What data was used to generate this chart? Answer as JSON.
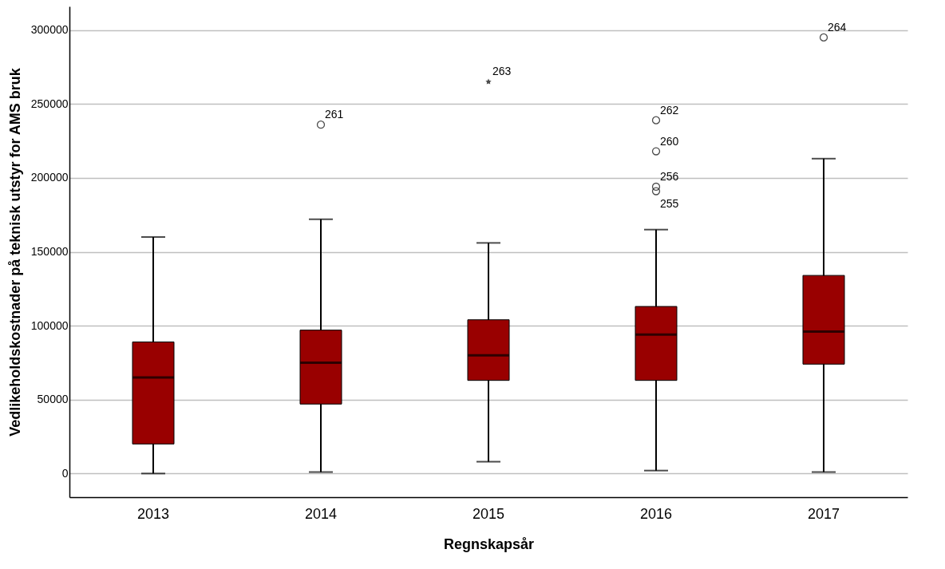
{
  "chart_data": {
    "type": "box",
    "xlabel": "Regnskapsår",
    "ylabel": "Vedlikeholdskostnader på teknisk utstyr for AMS bruk",
    "categories": [
      "2013",
      "2014",
      "2015",
      "2016",
      "2017"
    ],
    "ylim": [
      -16000,
      316000
    ],
    "yticks": [
      0,
      50000,
      100000,
      150000,
      200000,
      250000,
      300000
    ],
    "grid": "y",
    "series": [
      {
        "color": "#990000",
        "boxes": [
          {
            "low": 0,
            "q1": 20000,
            "median": 65000,
            "q3": 89000,
            "high": 160000
          },
          {
            "low": 1000,
            "q1": 47000,
            "median": 75000,
            "q3": 97000,
            "high": 172000,
            "outliers": [
              236000
            ]
          },
          {
            "low": 8000,
            "q1": 63000,
            "median": 80000,
            "q3": 104000,
            "high": 156000
          },
          {
            "low": 2000,
            "q1": 63000,
            "median": 94000,
            "q3": 113000,
            "high": 165000,
            "outliers": [
              239000,
              218000,
              194000,
              191000
            ]
          },
          {
            "low": 1000,
            "q1": 74000,
            "median": 96000,
            "q3": 134000,
            "high": 213000,
            "outliers": [
              295000
            ]
          }
        ]
      },
      {
        "type": "scatter",
        "marker": "star",
        "color": "#000000",
        "values": [
          null,
          null,
          265000,
          null,
          null
        ]
      }
    ],
    "annotations": [
      "261",
      "262",
      "260",
      "256",
      "255",
      "264",
      "263"
    ]
  }
}
